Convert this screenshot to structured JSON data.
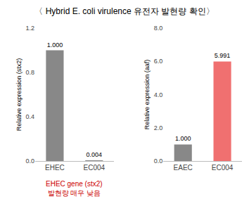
{
  "chart_data": [
    {
      "type": "bar",
      "title": "〈 Hybrid E. coli virulence 유전자 발현량 확인〉",
      "ylabel": "Relative expression (stx2)",
      "categories": [
        "EHEC",
        "EC004"
      ],
      "values": [
        1.0,
        0.004
      ],
      "value_labels": [
        "1.000",
        "0.004"
      ],
      "colors": [
        "#888888",
        "#888888"
      ],
      "ylim": [
        0,
        1.2
      ],
      "yticks": [
        {
          "value": 0.0,
          "label": "0.0"
        },
        0.4,
        0.8,
        1.2
      ],
      "data_labels": true,
      "grid": false,
      "annotations": [
        {
          "text": "EHEC gene (stx2)",
          "color": "#cc0000"
        },
        {
          "text": "발현량 매우 낮음",
          "color": "#cc0000"
        }
      ]
    },
    {
      "type": "bar",
      "ylabel": "Relative expression (aaf)",
      "categories": [
        "EAEC",
        "EC004"
      ],
      "values": [
        1.0,
        5.991
      ],
      "value_labels": [
        "1.000",
        "5.991"
      ],
      "colors": [
        "#888888",
        "#f07070"
      ],
      "ylim": [
        0,
        8.0
      ],
      "yticks": [
        {
          "value": 0.0,
          "label": "0.0"
        },
        {
          "value": 2.0,
          "label": "2.0"
        },
        {
          "value": 4.0,
          "label": "4.0"
        },
        {
          "value": 6.0,
          "label": "6.0"
        },
        {
          "value": 8.0,
          "label": "8.0"
        }
      ],
      "data_labels": true,
      "grid": false
    }
  ]
}
